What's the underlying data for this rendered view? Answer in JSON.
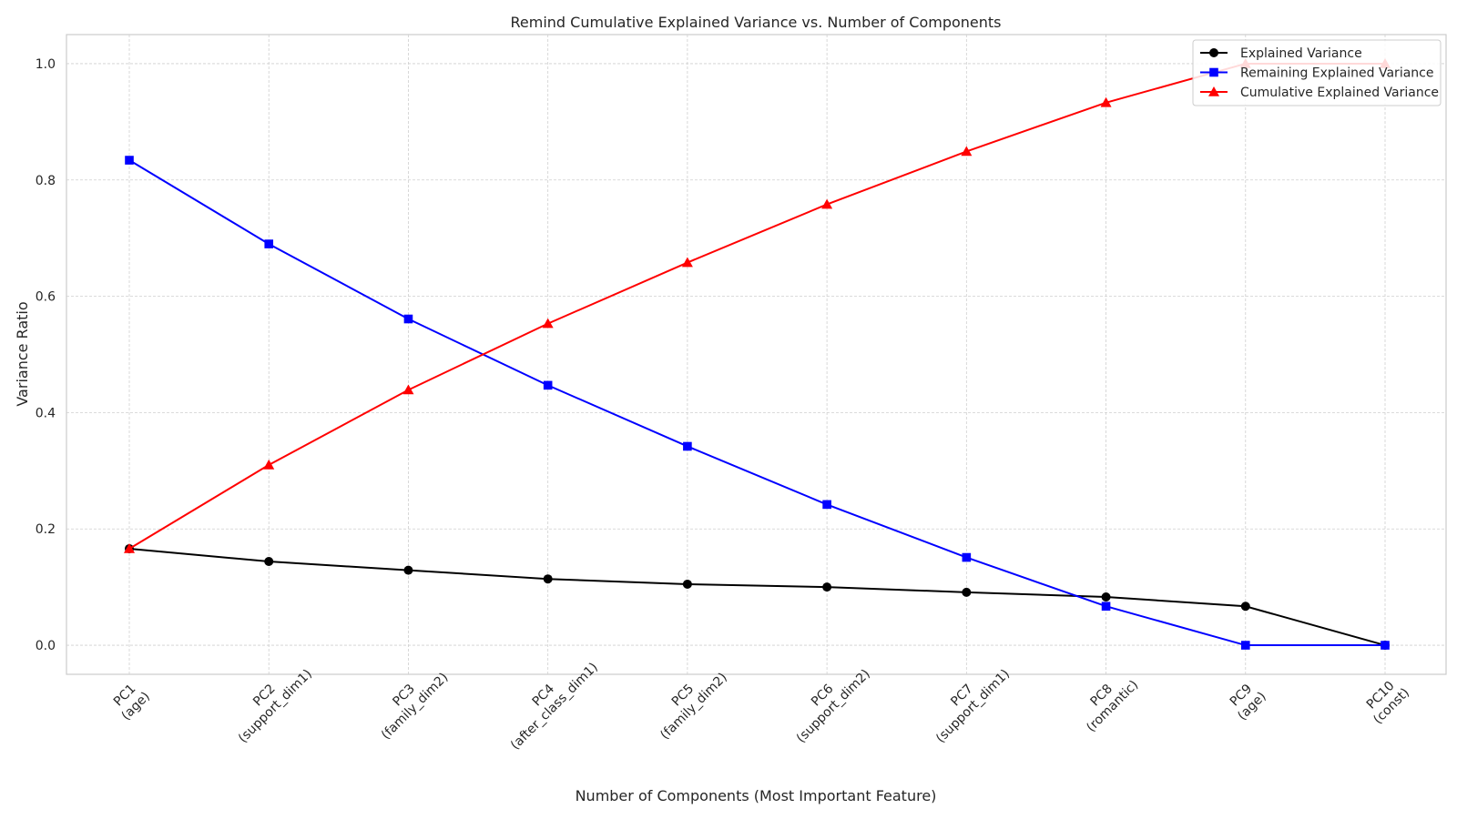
{
  "chart_data": {
    "type": "line",
    "title": "Remind Cumulative Explained Variance vs. Number of Components",
    "xlabel": "Number of Components (Most Important Feature)",
    "ylabel": "Variance Ratio",
    "ylim": [
      -0.05,
      1.05
    ],
    "yticks": [
      "0.0",
      "0.2",
      "0.4",
      "0.6",
      "0.8",
      "1.0"
    ],
    "grid": true,
    "legend_position": "top-right",
    "categories": [
      [
        "PC1",
        "(age)"
      ],
      [
        "PC2",
        "(support_dim1)"
      ],
      [
        "PC3",
        "(family_dim2)"
      ],
      [
        "PC4",
        "(after_class_dim1)"
      ],
      [
        "PC5",
        "(family_dim2)"
      ],
      [
        "PC6",
        "(support_dim2)"
      ],
      [
        "PC7",
        "(support_dim1)"
      ],
      [
        "PC8",
        "(romantic)"
      ],
      [
        "PC9",
        "(age)"
      ],
      [
        "PC10",
        "(const)"
      ]
    ],
    "series": [
      {
        "name": "Explained Variance",
        "color": "#000000",
        "marker": "circle",
        "values": [
          0.166,
          0.144,
          0.129,
          0.114,
          0.105,
          0.1,
          0.091,
          0.083,
          0.067,
          0.0
        ]
      },
      {
        "name": "Remaining Explained Variance",
        "color": "#0000ff",
        "marker": "square",
        "values": [
          0.834,
          0.69,
          0.561,
          0.447,
          0.342,
          0.242,
          0.151,
          0.067,
          0.0,
          0.0
        ]
      },
      {
        "name": "Cumulative Explained Variance",
        "color": "#ff0000",
        "marker": "triangle",
        "values": [
          0.166,
          0.31,
          0.439,
          0.553,
          0.658,
          0.758,
          0.849,
          0.933,
          1.0,
          1.0
        ]
      }
    ]
  }
}
